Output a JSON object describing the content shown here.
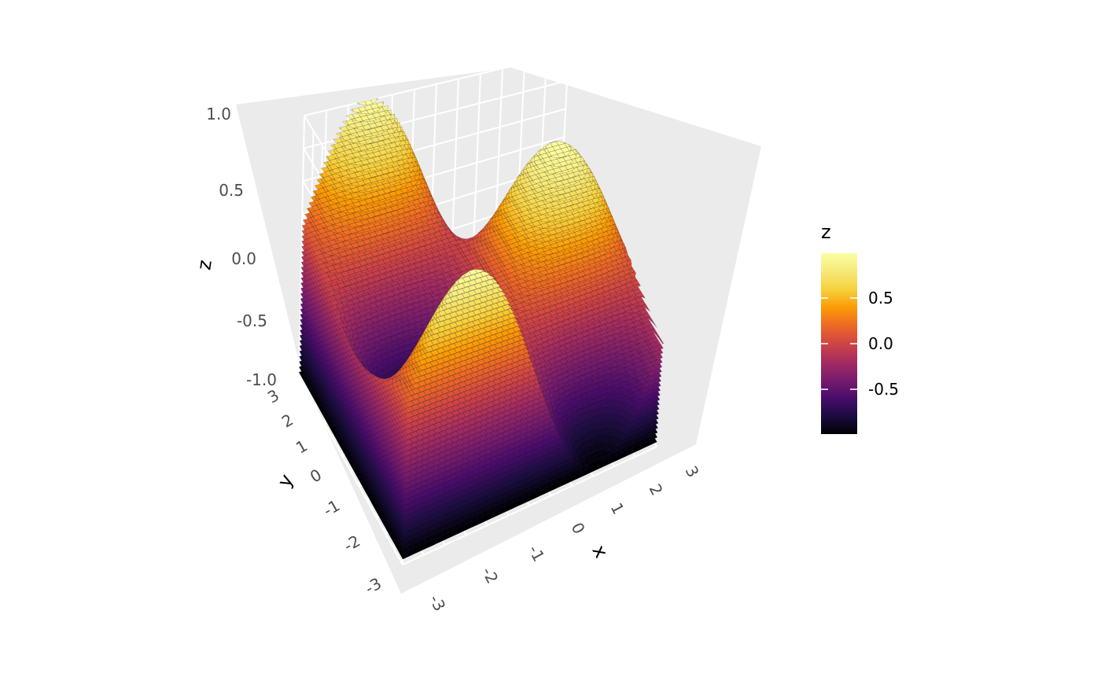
{
  "chart_data": {
    "type": "surface-3d-contour",
    "function": "z = sin(x) * cos(y)",
    "x_range": [
      -3,
      3
    ],
    "y_range": [
      -3,
      3
    ],
    "z_range": [
      -1,
      1
    ],
    "xlabel": "x",
    "ylabel": "y",
    "zlabel": "z",
    "x_ticks": [
      "-3",
      "-2",
      "-1",
      "0",
      "1",
      "2",
      "3"
    ],
    "y_ticks": [
      "-3",
      "-2",
      "-1",
      "0",
      "1",
      "2",
      "3"
    ],
    "z_ticks": [
      "-1.0",
      "-0.5",
      "0.0",
      "0.5",
      "1.0"
    ],
    "legend": {
      "title": "z",
      "ticks": [
        "0.5",
        "0.0",
        "-0.5"
      ],
      "tick_values": [
        0.5,
        0.0,
        -0.5
      ],
      "range": [
        -0.99,
        0.99
      ],
      "colorscale": "inferno",
      "placement": "right"
    },
    "contour_levels": 50,
    "grid": true,
    "panel_background": "#ebebeb"
  }
}
